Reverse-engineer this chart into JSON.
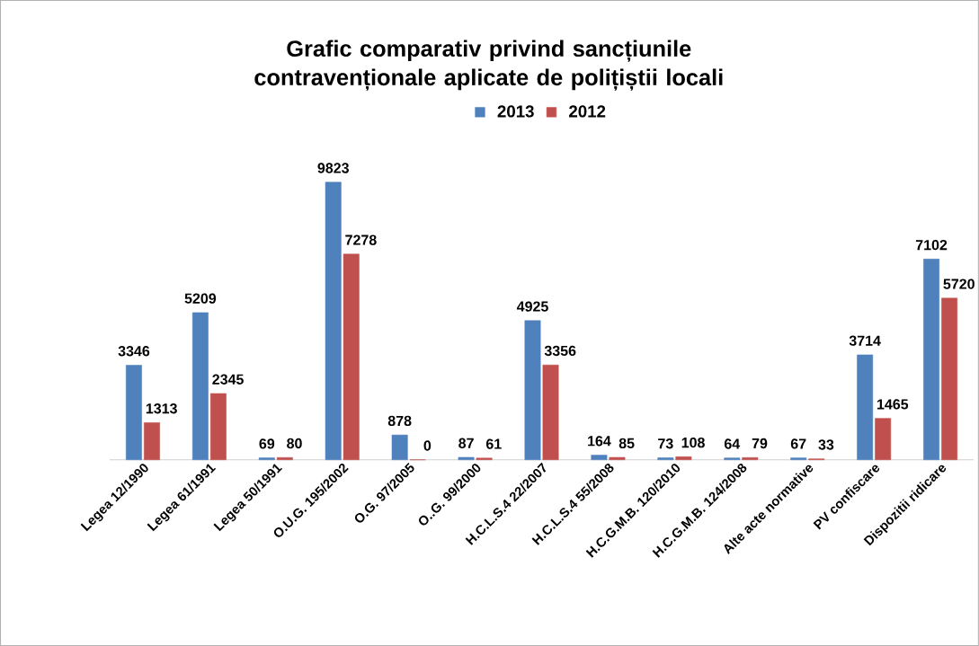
{
  "chart_data": {
    "type": "bar",
    "title": "Grafic comparativ privind sancțiunile contravenționale aplicate de polițiștii locali",
    "categories": [
      "Legea 12/1990",
      "Legea 61/1991",
      "Legea 50/1991",
      "O.U.G. 195/2002",
      "O.G. 97/2005",
      "O..G. 99/2000",
      "H.C.L.S.4 22/2007",
      "H.C.L.S.4 55/2008",
      "H.C.G.M.B. 120/2010",
      "H.C.G.M.B. 124/2008",
      "Alte acte normative",
      "PV confiscare",
      "Dispozitii ridicare"
    ],
    "series": [
      {
        "name": "2013",
        "color": "#4f81bd",
        "values": [
          3346,
          5209,
          69,
          9823,
          878,
          87,
          4925,
          164,
          73,
          64,
          67,
          3714,
          7102
        ]
      },
      {
        "name": "2012",
        "color": "#c0504d",
        "values": [
          1313,
          2345,
          80,
          7278,
          0,
          61,
          3356,
          85,
          108,
          79,
          33,
          1465,
          5720
        ]
      }
    ],
    "data_labels": true,
    "legend": "top"
  }
}
